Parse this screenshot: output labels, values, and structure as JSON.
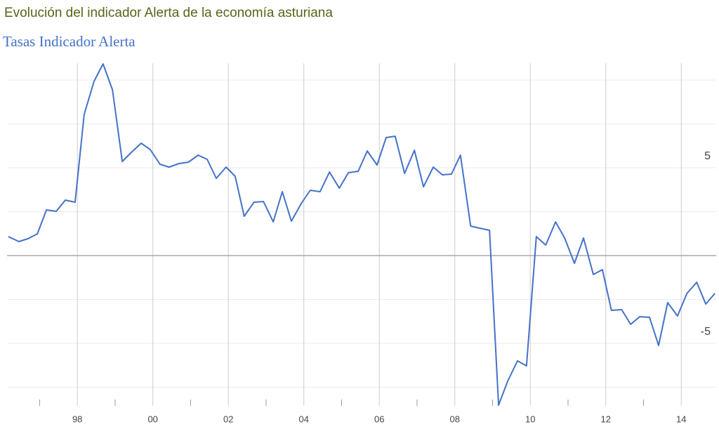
{
  "chart_data": {
    "type": "line",
    "title": "Evolución del indicador Alerta de la economía asturiana",
    "subtitle": "Tasas Indicador Alerta",
    "x": [
      1996.17,
      1996.45,
      1996.69,
      1996.94,
      1997.18,
      1997.44,
      1997.68,
      1997.94,
      1998.18,
      1998.44,
      1998.68,
      1998.93,
      1999.19,
      1999.43,
      1999.69,
      1999.93,
      2000.19,
      2000.43,
      2000.69,
      2000.94,
      2001.2,
      2001.44,
      2001.68,
      2001.94,
      2002.18,
      2002.42,
      2002.68,
      2002.93,
      2003.19,
      2003.43,
      2003.67,
      2003.93,
      2004.17,
      2004.43,
      2004.68,
      2004.94,
      2005.18,
      2005.44,
      2005.68,
      2005.94,
      2006.18,
      2006.42,
      2006.67,
      2006.93,
      2007.17,
      2007.43,
      2007.67,
      2007.91,
      2008.15,
      2008.42,
      2008.66,
      2008.92,
      2009.16,
      2009.4,
      2009.66,
      2009.9,
      2010.16,
      2010.41,
      2010.67,
      2010.91,
      2011.17,
      2011.41,
      2011.67,
      2011.91,
      2012.15,
      2012.42,
      2012.66,
      2012.9,
      2013.16,
      2013.4,
      2013.64,
      2013.9,
      2014.15,
      2014.41,
      2014.65,
      2014.89
    ],
    "series": [
      {
        "name": "Tasas Indicador Alerta",
        "color": "#4472c9",
        "values": [
          1.08,
          0.8,
          0.96,
          1.24,
          2.6,
          2.52,
          3.16,
          3.04,
          8.04,
          9.92,
          10.92,
          9.44,
          5.36,
          5.88,
          6.4,
          6.04,
          5.2,
          5.04,
          5.24,
          5.32,
          5.72,
          5.48,
          4.4,
          5.04,
          4.52,
          2.24,
          3.04,
          3.08,
          1.92,
          3.64,
          1.96,
          2.96,
          3.72,
          3.64,
          4.76,
          3.84,
          4.72,
          4.8,
          5.96,
          5.16,
          6.72,
          6.8,
          4.68,
          6.0,
          3.92,
          5.04,
          4.6,
          4.64,
          5.72,
          1.68,
          1.56,
          1.44,
          -8.52,
          -7.16,
          -6.0,
          -6.28,
          1.08,
          0.6,
          1.92,
          1.0,
          -0.44,
          1.0,
          -1.08,
          -0.8,
          -3.12,
          -3.08,
          -3.92,
          -3.48,
          -3.52,
          -5.12,
          -2.68,
          -3.44,
          -2.16,
          -1.52,
          -2.76,
          -2.16
        ]
      }
    ],
    "xlim": [
      1995.95,
      2015.0
    ],
    "xticks": [
      {
        "value": 1998,
        "label": "98"
      },
      {
        "value": 2000,
        "label": "00"
      },
      {
        "value": 2002,
        "label": "02"
      },
      {
        "value": 2004,
        "label": "04"
      },
      {
        "value": 2006,
        "label": "06"
      },
      {
        "value": 2008,
        "label": "08"
      },
      {
        "value": 2010,
        "label": "10"
      },
      {
        "value": 2012,
        "label": "12"
      },
      {
        "value": 2014,
        "label": "14"
      }
    ],
    "x_minor_ticks": [
      1997,
      1999,
      2001,
      2003,
      2005,
      2007,
      2009,
      2011,
      2013
    ],
    "ylim": [
      -8.6,
      11
    ],
    "yticks": [
      -5,
      5
    ],
    "y_minor_ticks": [
      -7.5,
      -2.5,
      2.5,
      7.5,
      10
    ],
    "grid": true
  }
}
